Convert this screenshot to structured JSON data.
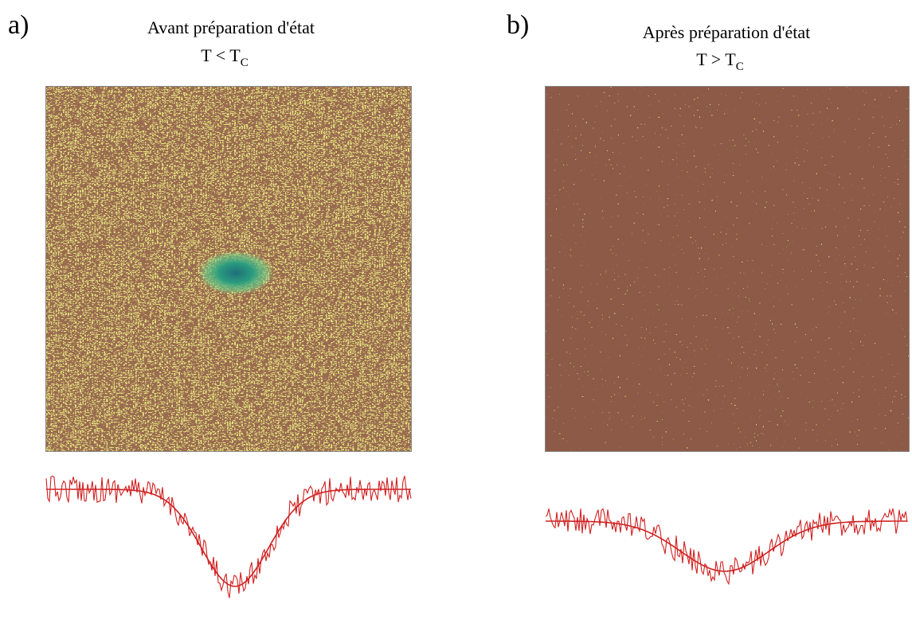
{
  "panels": [
    {
      "label": "a)",
      "title": "Avant préparation d'état",
      "condition": "T < T",
      "subscript": "C"
    },
    {
      "label": "b)",
      "title": "Après préparation d'état",
      "condition": "T > T",
      "subscript": "C"
    }
  ]
}
